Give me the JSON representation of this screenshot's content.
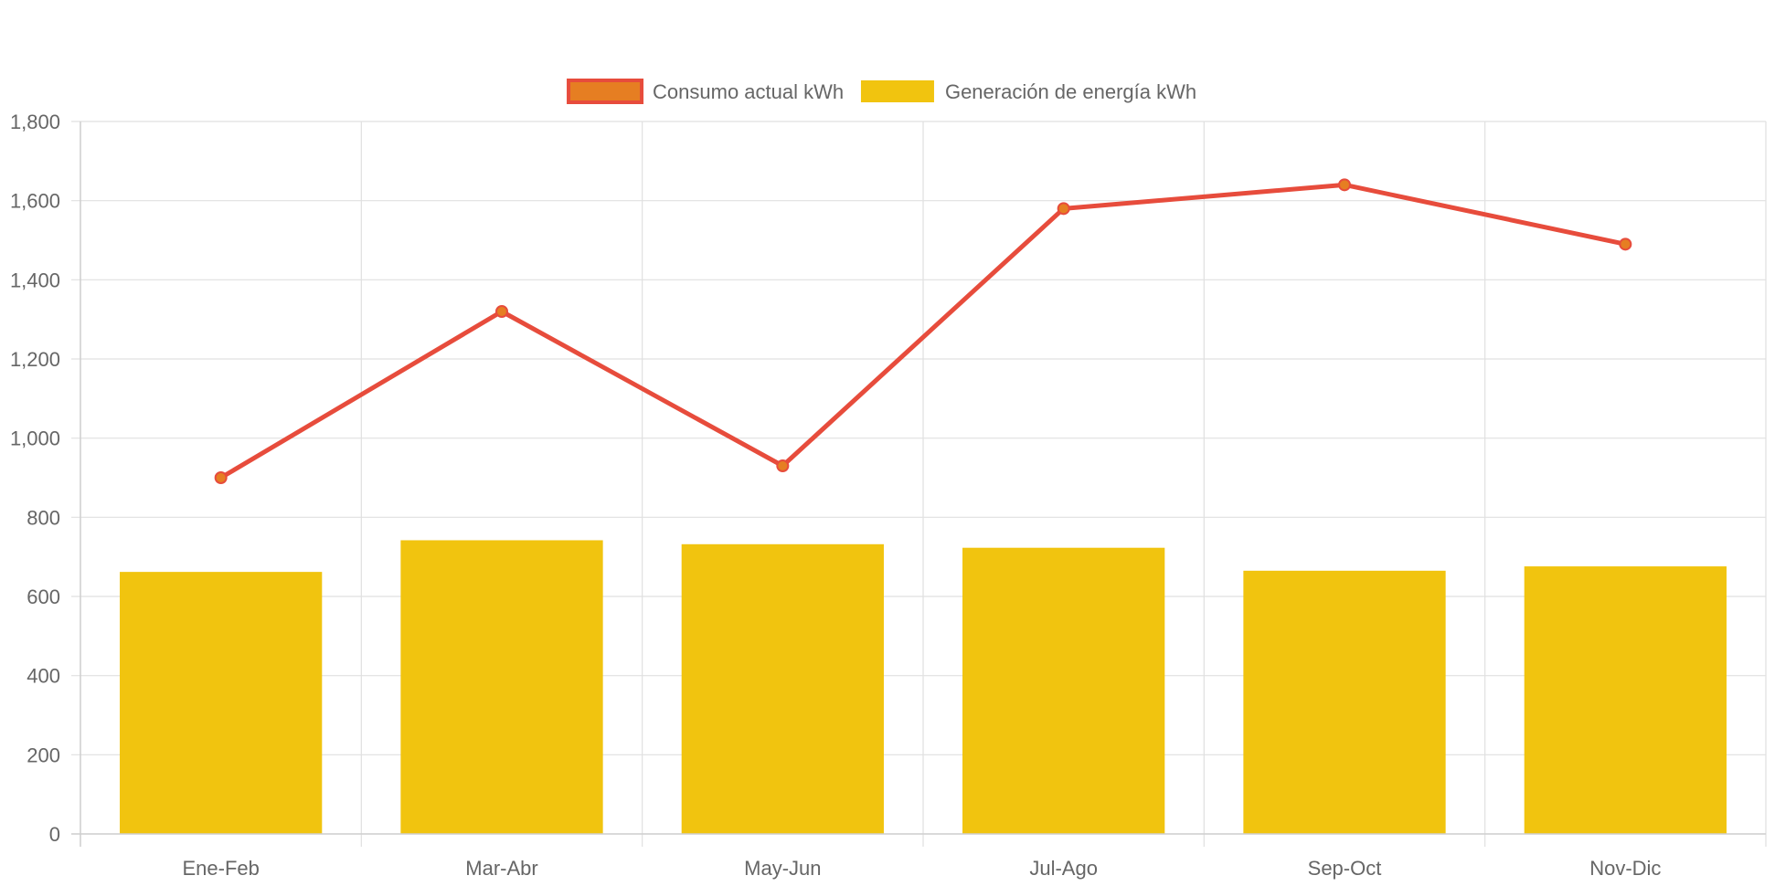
{
  "chart_data": {
    "type": "bar",
    "categories": [
      "Ene-Feb",
      "Mar-Abr",
      "May-Jun",
      "Jul-Ago",
      "Sep-Oct",
      "Nov-Dic"
    ],
    "series": [
      {
        "name": "Consumo actual kWh",
        "type": "line",
        "values": [
          900,
          1320,
          930,
          1580,
          1640,
          1490
        ],
        "color": "#e74c3c",
        "point_color": "#e67e22"
      },
      {
        "name": "Generación de energía kWh",
        "type": "bar",
        "values": [
          662,
          742,
          732,
          723,
          665,
          676
        ],
        "color": "#f1c40f"
      }
    ],
    "ylim": [
      0,
      1800
    ],
    "yticks": [
      0,
      200,
      400,
      600,
      800,
      1000,
      1200,
      1400,
      1600,
      1800
    ],
    "ytick_labels": [
      "0",
      "200",
      "400",
      "600",
      "800",
      "1,000",
      "1,200",
      "1,400",
      "1,600",
      "1,800"
    ],
    "grid": true,
    "legend_position": "top"
  }
}
